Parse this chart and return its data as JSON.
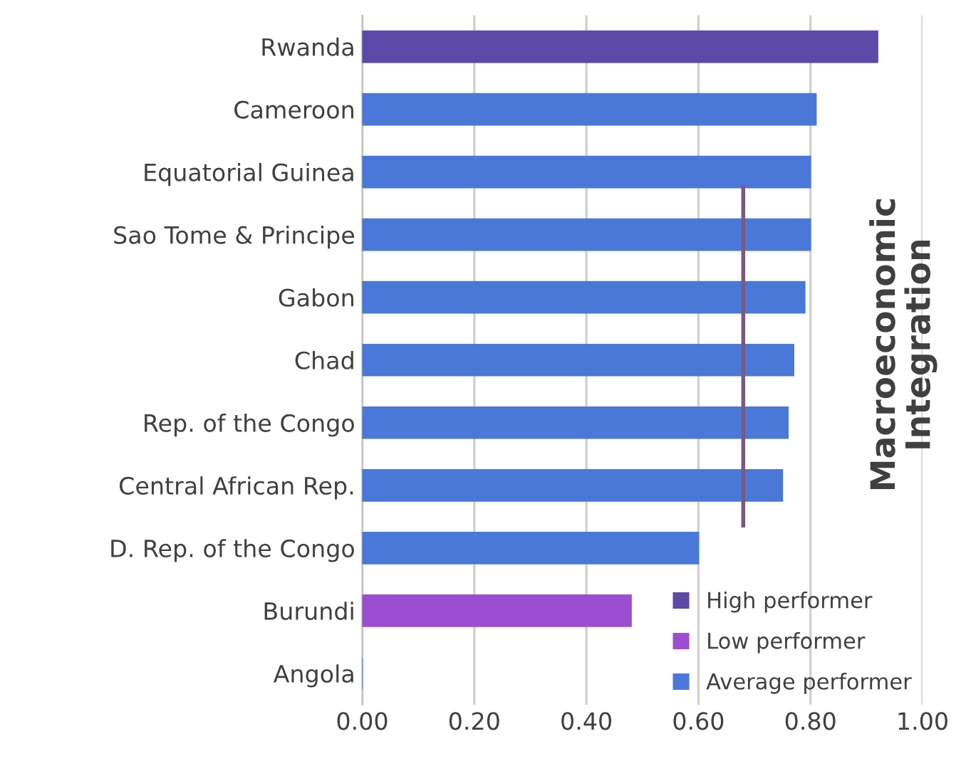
{
  "chart_data": {
    "type": "bar",
    "orientation": "horizontal",
    "title": "Macroeconomic Integration",
    "categories": [
      "Rwanda",
      "Cameroon",
      "Equatorial Guinea",
      "Sao Tome & Principe",
      "Gabon",
      "Chad",
      "Rep. of the Congo",
      "Central African Rep.",
      "D. Rep. of the Congo",
      "Burundi",
      "Angola"
    ],
    "series": [
      {
        "name": "High performer",
        "color": "#5b4aa8",
        "values": [
          0.92,
          null,
          null,
          null,
          null,
          null,
          null,
          null,
          null,
          null,
          null
        ]
      },
      {
        "name": "Low performer",
        "color": "#9b4fd0",
        "values": [
          null,
          null,
          null,
          null,
          null,
          null,
          null,
          null,
          null,
          0.48,
          null
        ]
      },
      {
        "name": "Average performer",
        "color": "#4a78d8",
        "values": [
          null,
          0.81,
          0.8,
          0.8,
          0.79,
          0.77,
          0.76,
          0.75,
          0.6,
          null,
          0
        ]
      }
    ],
    "ref_lines": [
      {
        "axis": "x",
        "value": 0.68,
        "color": "#7a5a80"
      }
    ],
    "xlim": [
      0,
      1
    ],
    "xticks": [
      {
        "value": 0,
        "label": "0.00"
      },
      {
        "value": 0.2,
        "label": "0.20"
      },
      {
        "value": 0.4,
        "label": "0.40"
      },
      {
        "value": 0.6,
        "label": "0.60"
      },
      {
        "value": 0.8,
        "label": "0.80"
      },
      {
        "value": 1,
        "label": "1.00"
      }
    ],
    "grid": "x",
    "legend": "bottom right"
  }
}
